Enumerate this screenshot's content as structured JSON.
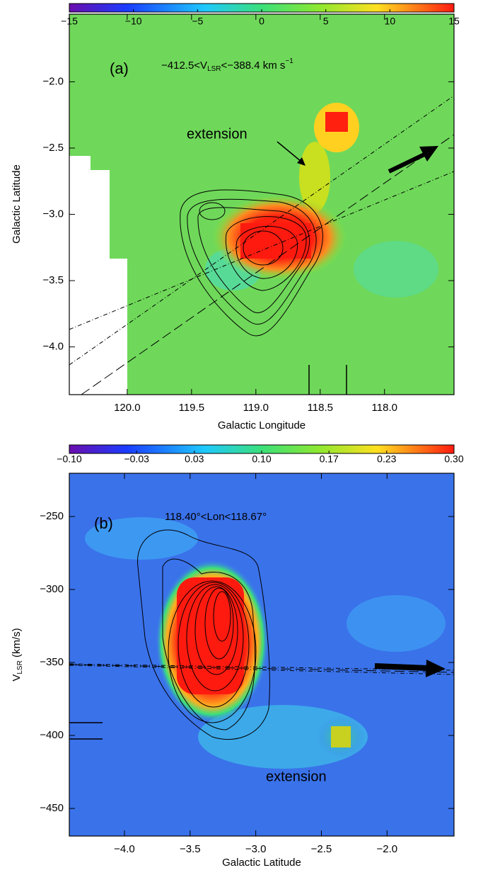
{
  "chart_data": [
    {
      "type": "image",
      "annotation_label": "(a)",
      "annotation": [
        "−412.5<V",
        "LSR",
        "<−388.4 km s",
        "−1"
      ],
      "extension_label": "extension",
      "x_label": "Galactic Longitude",
      "y_label": "Galactic Latitude",
      "xlim": [
        120.45,
        117.46
      ],
      "ylim": [
        -4.36,
        -1.49
      ],
      "xticks": [
        {
          "value": 120,
          "label": "120.0"
        },
        {
          "value": 119.5,
          "label": "119.5"
        },
        {
          "value": 119,
          "label": "119.0"
        },
        {
          "value": 118.5,
          "label": "118.5"
        },
        {
          "value": 118,
          "label": "118.0"
        }
      ],
      "yticks": [
        {
          "value": -4,
          "label": "−4.0"
        },
        {
          "value": -3.5,
          "label": "−3.5"
        },
        {
          "value": -3,
          "label": "−3.0"
        },
        {
          "value": -2.5,
          "label": "−2.5"
        },
        {
          "value": -2,
          "label": "−2.0"
        }
      ],
      "clim": [
        -15,
        15
      ],
      "cticks": [
        {
          "value": -15,
          "label": "−15"
        },
        {
          "value": -10,
          "label": "−10"
        },
        {
          "value": -5,
          "label": "−5"
        },
        0,
        5,
        10,
        15
      ]
    },
    {
      "type": "image",
      "annotation_label": "(b)",
      "annotation": [
        "118.40°<Lon<118.67°"
      ],
      "extension_label": "extension",
      "x_label": "Galactic Latitude",
      "y_label": [
        "V",
        "LSR",
        " (km/s)"
      ],
      "xlim": [
        -4.42,
        -1.49
      ],
      "ylim": [
        -468.9,
        -220.4
      ],
      "xticks": [
        {
          "value": -4,
          "label": "−4.0"
        },
        {
          "value": -3.5,
          "label": "−3.5"
        },
        {
          "value": -3,
          "label": "−3.0"
        },
        {
          "value": -2.5,
          "label": "−2.5"
        },
        {
          "value": -2,
          "label": "−2.0"
        }
      ],
      "yticks": [
        {
          "value": -450,
          "label": "−450"
        },
        {
          "value": -400,
          "label": "−400"
        },
        {
          "value": -350,
          "label": "−350"
        },
        {
          "value": -300,
          "label": "−300"
        },
        {
          "value": -250,
          "label": "−250"
        }
      ],
      "clim": [
        -0.1,
        0.3
      ],
      "cticks": [
        {
          "value": -0.1,
          "label": "−0.10"
        },
        {
          "value": -0.03,
          "label": "−0.03"
        },
        {
          "value": 0.03,
          "label": "0.03"
        },
        {
          "value": 0.1,
          "label": "0.10"
        },
        {
          "value": 0.17,
          "label": "0.17"
        },
        {
          "value": 0.23,
          "label": "0.23"
        },
        {
          "value": 0.3,
          "label": "0.30"
        }
      ]
    }
  ]
}
